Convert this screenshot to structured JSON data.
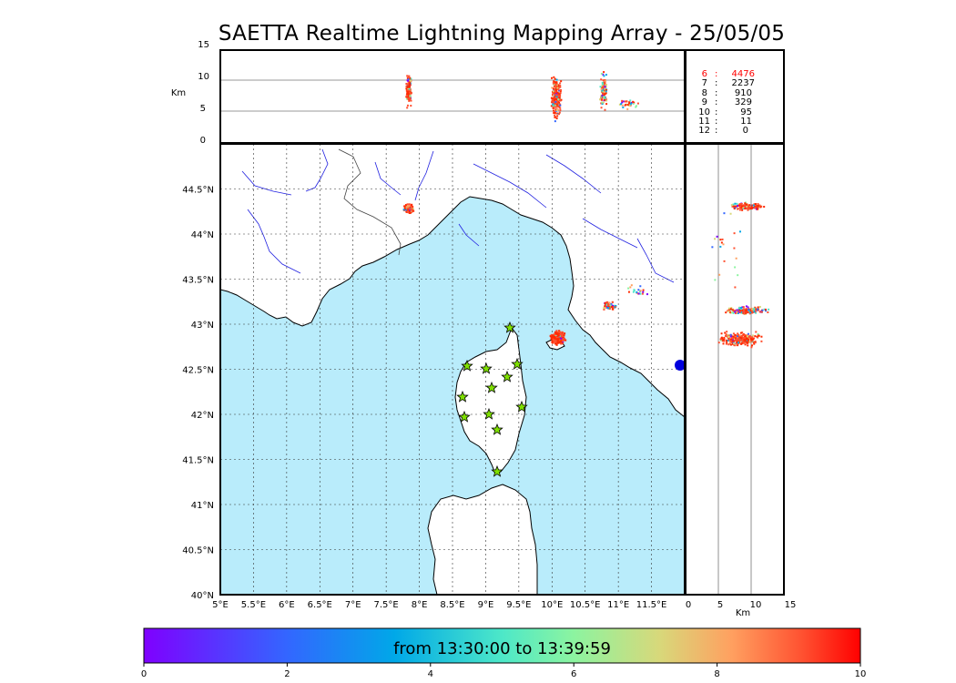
{
  "title": "SAETTA Realtime Lightning Mapping Array - 25/05/05",
  "top_panel": {
    "ylabel": "Km",
    "yticks": [
      "15",
      "10",
      "5",
      "0"
    ],
    "counts": [
      {
        "key": "6",
        "value": "4476",
        "color": "#ff0000"
      },
      {
        "key": "7",
        "value": "2237",
        "color": "#000000"
      },
      {
        "key": "8",
        "value": "910",
        "color": "#000000"
      },
      {
        "key": "9",
        "value": "329",
        "color": "#000000"
      },
      {
        "key": "10",
        "value": "95",
        "color": "#000000"
      },
      {
        "key": "11",
        "value": "11",
        "color": "#000000"
      },
      {
        "key": "12",
        "value": "0",
        "color": "#000000"
      }
    ]
  },
  "map": {
    "lat_ticks": [
      "44.5°N",
      "44°N",
      "43.5°N",
      "43°N",
      "42.5°N",
      "42°N",
      "41.5°N",
      "41°N",
      "40.5°N",
      "40°N"
    ],
    "lon_ticks": [
      "5°E",
      "5.5°E",
      "6°E",
      "6.5°E",
      "7°E",
      "7.5°E",
      "8°E",
      "8.5°E",
      "9°E",
      "9.5°E",
      "10°E",
      "10.5°E",
      "11°E",
      "11.5°E"
    ],
    "sea_color": "#b9ecfb",
    "land_color": "#ffffff",
    "river_color": "#2020e0",
    "station_color": "#7fe000"
  },
  "side_panel": {
    "xlabel": "Km",
    "xticks": [
      "0",
      "5",
      "10",
      "15"
    ]
  },
  "colorbar": {
    "label": "from 13:30:00 to 13:39:59",
    "ticks": [
      "0",
      "2",
      "4",
      "6",
      "8",
      "10"
    ],
    "range": [
      0,
      10
    ]
  }
}
